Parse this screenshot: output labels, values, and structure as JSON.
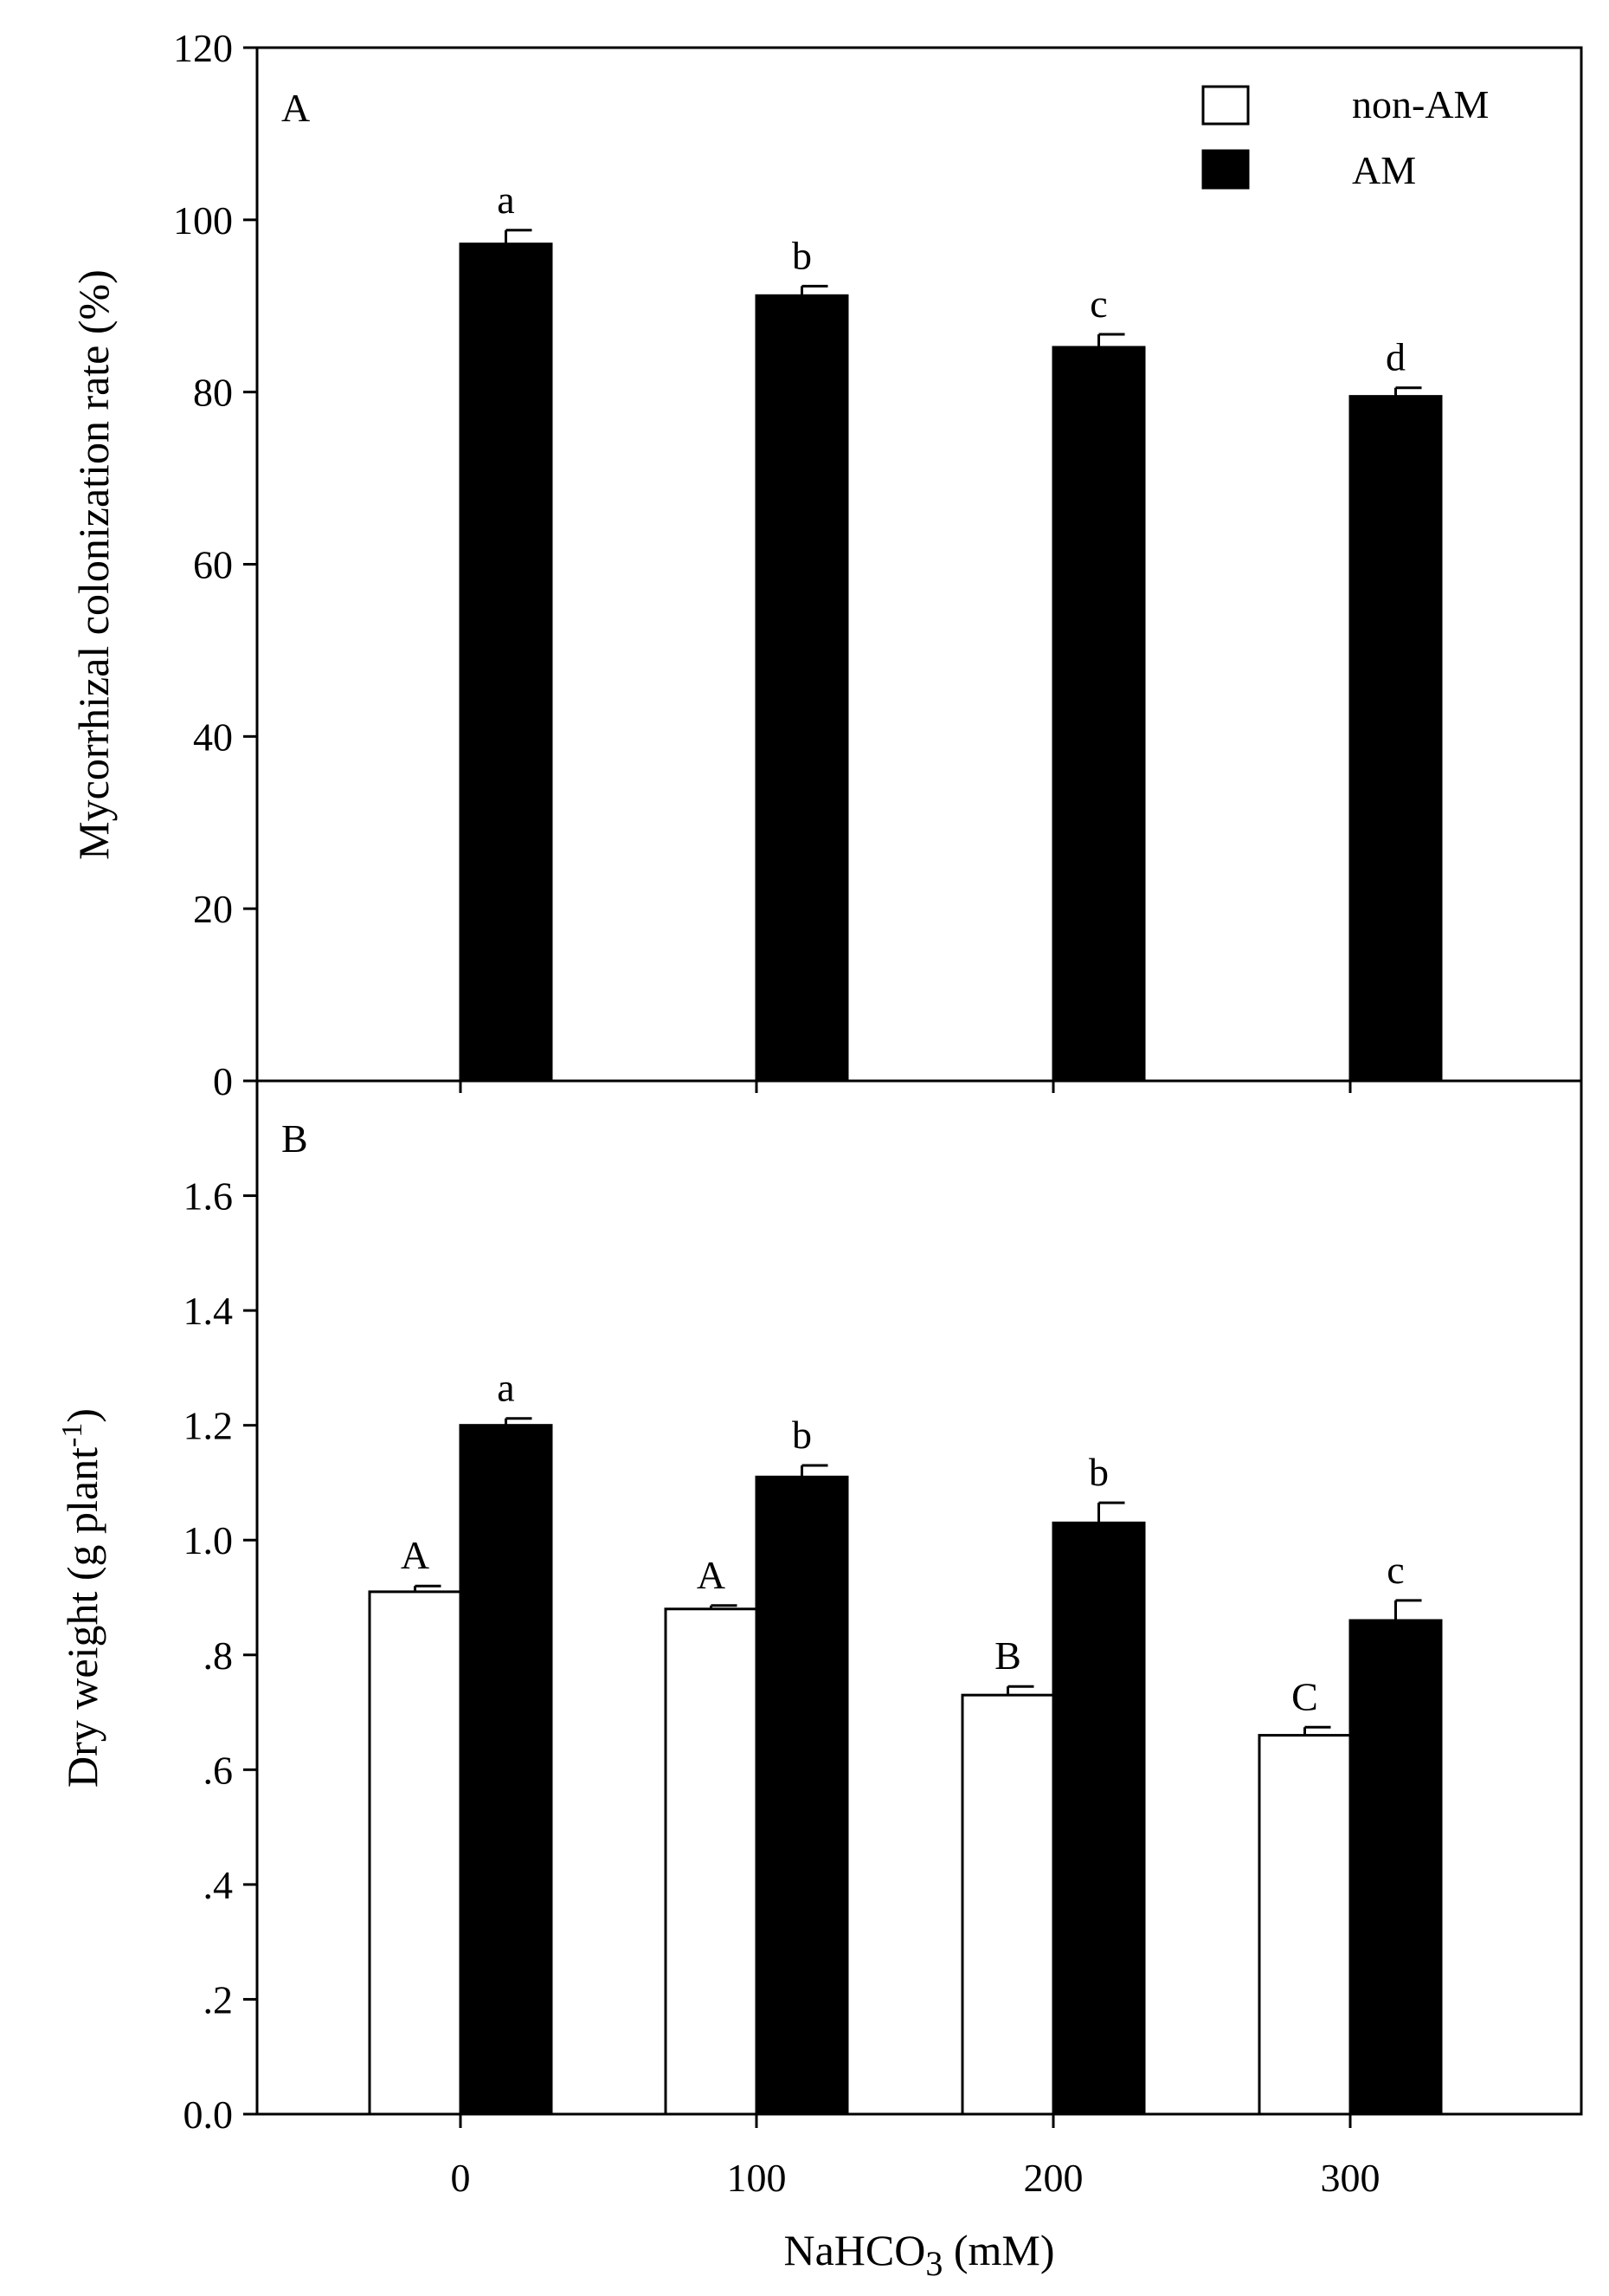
{
  "chart_data": [
    {
      "type": "bar",
      "panel": "A",
      "ylabel": "Mycorrhizal colonization rate (%)",
      "categories": [
        "0",
        "100",
        "200",
        "300"
      ],
      "ylim": [
        0,
        120
      ],
      "yticks": [
        0,
        20,
        40,
        60,
        80,
        100,
        120
      ],
      "ytick_labels": [
        "0",
        "20",
        "40",
        "60",
        "80",
        "100",
        "120"
      ],
      "series": [
        {
          "name": "AM",
          "color": "#000000",
          "values": [
            97.2,
            91.2,
            85.2,
            79.5
          ],
          "errors": [
            1.6,
            1.1,
            1.5,
            1.0
          ],
          "letters": [
            "a",
            "b",
            "c",
            "d"
          ]
        }
      ],
      "legend": {
        "position": "top-right",
        "entries": [
          {
            "label": "non-AM",
            "color": "#ffffff"
          },
          {
            "label": "AM",
            "color": "#000000"
          }
        ]
      }
    },
    {
      "type": "bar",
      "panel": "B",
      "ylabel_main": "Dry weight (g plant",
      "ylabel_sup": "-1",
      "ylabel_end": ")",
      "categories": [
        "0",
        "100",
        "200",
        "300"
      ],
      "ylim": [
        0.0,
        1.8
      ],
      "yticks": [
        0.0,
        0.2,
        0.4,
        0.6,
        0.8,
        1.0,
        1.2,
        1.4,
        1.6
      ],
      "ytick_labels": [
        "0.0",
        ".2",
        ".4",
        ".6",
        ".8",
        "1.0",
        "1.2",
        "1.4",
        "1.6"
      ],
      "series": [
        {
          "name": "non-AM",
          "color": "#ffffff",
          "values": [
            0.91,
            0.88,
            0.73,
            0.66
          ],
          "errors": [
            0.01,
            0.006,
            0.015,
            0.014
          ],
          "letters": [
            "A",
            "A",
            "B",
            "C"
          ]
        },
        {
          "name": "AM",
          "color": "#000000",
          "values": [
            1.2,
            1.11,
            1.03,
            0.86
          ],
          "errors": [
            0.012,
            0.02,
            0.035,
            0.035
          ],
          "letters": [
            "a",
            "b",
            "b",
            "c"
          ]
        }
      ],
      "xlabel_pre": "NaHCO",
      "xlabel_sub": "3",
      "xlabel_post": " (mM)"
    }
  ]
}
